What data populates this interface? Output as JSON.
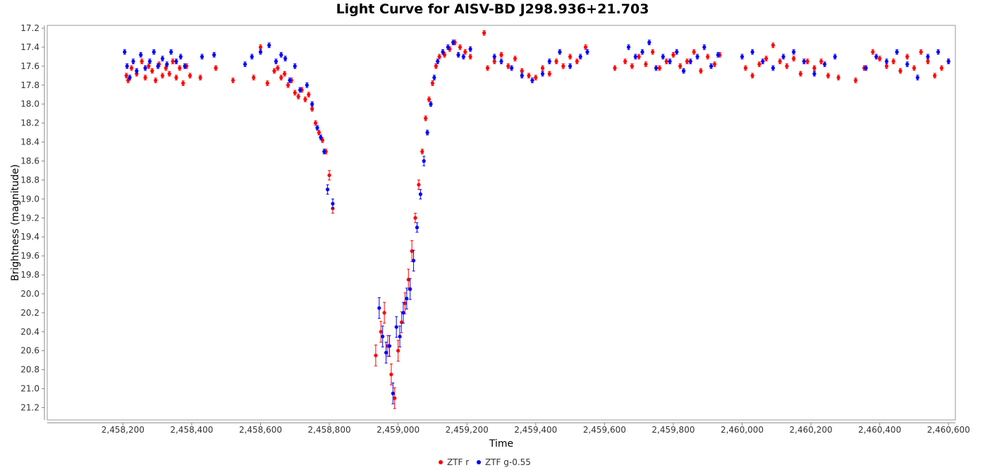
{
  "chart_data": {
    "type": "scatter",
    "title": "Light Curve for AISV-BD J298.936+21.703",
    "xlabel": "Time",
    "ylabel": "Brightness (magnitude)",
    "xlim": [
      2457980,
      2460620
    ],
    "ylim": [
      21.33,
      17.17
    ],
    "y_inverted": true,
    "grid": false,
    "legend_position": "bottom-center",
    "x_ticks": [
      2458200,
      2458400,
      2458600,
      2458800,
      2459000,
      2459200,
      2459400,
      2459600,
      2459800,
      2460000,
      2460200,
      2460400,
      2460600
    ],
    "x_tick_labels": [
      "2,458,200",
      "2,458,400",
      "2,458,600",
      "2,458,800",
      "2,459,000",
      "2,459,200",
      "2,459,400",
      "2,459,600",
      "2,459,800",
      "2,460,000",
      "2,460,200",
      "2,460,400",
      "2,460,600"
    ],
    "y_ticks": [
      17.2,
      17.4,
      17.6,
      17.8,
      18.0,
      18.2,
      18.4,
      18.6,
      18.8,
      19.0,
      19.2,
      19.4,
      19.6,
      19.8,
      20.0,
      20.2,
      20.4,
      20.6,
      20.8,
      21.0,
      21.2
    ],
    "y_tick_labels": [
      "17.2",
      "17.4",
      "17.6",
      "17.8",
      "18.0",
      "18.2",
      "18.4",
      "18.6",
      "18.8",
      "19.0",
      "19.2",
      "19.4",
      "19.6",
      "19.8",
      "20.0",
      "20.2",
      "20.4",
      "20.6",
      "20.8",
      "21.0",
      "21.2"
    ],
    "series": [
      {
        "name": "ZTF r",
        "color": "#ff0000",
        "x": [
          2458210,
          2458215,
          2458225,
          2458240,
          2458255,
          2458265,
          2458275,
          2458285,
          2458295,
          2458305,
          2458315,
          2458325,
          2458335,
          2458345,
          2458355,
          2458365,
          2458375,
          2458385,
          2458395,
          2458425,
          2458470,
          2458520,
          2458580,
          2458600,
          2458620,
          2458640,
          2458650,
          2458660,
          2458670,
          2458680,
          2458690,
          2458700,
          2458710,
          2458720,
          2458730,
          2458740,
          2458750,
          2458760,
          2458770,
          2458780,
          2458790,
          2458800,
          2458810,
          2458935,
          2458950,
          2458960,
          2458970,
          2458980,
          2458990,
          2459000,
          2459010,
          2459020,
          2459030,
          2459040,
          2459050,
          2459060,
          2459070,
          2459080,
          2459090,
          2459100,
          2459110,
          2459120,
          2459135,
          2459150,
          2459165,
          2459180,
          2459195,
          2459210,
          2459250,
          2459260,
          2459280,
          2459300,
          2459320,
          2459340,
          2459360,
          2459380,
          2459400,
          2459420,
          2459440,
          2459460,
          2459480,
          2459500,
          2459520,
          2459545,
          2459630,
          2459660,
          2459680,
          2459700,
          2459720,
          2459740,
          2459760,
          2459780,
          2459800,
          2459820,
          2459840,
          2459860,
          2459880,
          2459900,
          2459920,
          2459935,
          2460010,
          2460030,
          2460050,
          2460070,
          2460090,
          2460110,
          2460130,
          2460150,
          2460170,
          2460190,
          2460210,
          2460230,
          2460250,
          2460280,
          2460330,
          2460355,
          2460380,
          2460400,
          2460420,
          2460440,
          2460460,
          2460480,
          2460500,
          2460520,
          2460540,
          2460560,
          2460580,
          2460600
        ],
        "y": [
          17.7,
          17.75,
          17.62,
          17.68,
          17.55,
          17.72,
          17.6,
          17.65,
          17.75,
          17.58,
          17.7,
          17.62,
          17.68,
          17.55,
          17.72,
          17.62,
          17.78,
          17.6,
          17.7,
          17.72,
          17.62,
          17.75,
          17.72,
          17.4,
          17.78,
          17.65,
          17.62,
          17.72,
          17.68,
          17.8,
          17.75,
          17.88,
          17.92,
          17.85,
          17.95,
          17.9,
          18.05,
          18.2,
          18.3,
          18.38,
          18.5,
          18.75,
          19.1,
          20.65,
          20.4,
          20.2,
          20.55,
          20.85,
          21.1,
          20.6,
          20.3,
          20.1,
          19.85,
          19.55,
          19.2,
          18.85,
          18.5,
          18.15,
          17.95,
          17.78,
          17.6,
          17.5,
          17.48,
          17.42,
          17.35,
          17.4,
          17.45,
          17.5,
          17.25,
          17.62,
          17.55,
          17.48,
          17.6,
          17.52,
          17.65,
          17.7,
          17.72,
          17.62,
          17.68,
          17.55,
          17.6,
          17.5,
          17.55,
          17.4,
          17.62,
          17.55,
          17.6,
          17.5,
          17.58,
          17.45,
          17.62,
          17.55,
          17.48,
          17.6,
          17.55,
          17.45,
          17.65,
          17.5,
          17.58,
          17.48,
          17.62,
          17.7,
          17.58,
          17.52,
          17.38,
          17.55,
          17.6,
          17.52,
          17.68,
          17.55,
          17.62,
          17.55,
          17.7,
          17.72,
          17.75,
          17.62,
          17.45,
          17.52,
          17.6,
          17.55,
          17.65,
          17.5,
          17.62,
          17.45,
          17.55,
          17.7,
          17.62,
          17.55
        ]
      },
      {
        "name": "ZTF g-0.55",
        "color": "#0000ff",
        "x": [
          2458205,
          2458212,
          2458220,
          2458230,
          2458240,
          2458252,
          2458265,
          2458278,
          2458290,
          2458302,
          2458315,
          2458328,
          2458340,
          2458355,
          2458368,
          2458380,
          2458430,
          2458465,
          2458555,
          2458575,
          2458600,
          2458625,
          2458645,
          2458660,
          2458672,
          2458685,
          2458700,
          2458715,
          2458735,
          2458750,
          2458765,
          2458775,
          2458785,
          2458795,
          2458810,
          2458945,
          2458955,
          2458965,
          2458975,
          2458985,
          2458995,
          2459005,
          2459015,
          2459025,
          2459035,
          2459045,
          2459055,
          2459065,
          2459075,
          2459085,
          2459095,
          2459105,
          2459115,
          2459130,
          2459145,
          2459160,
          2459175,
          2459190,
          2459210,
          2459280,
          2459300,
          2459330,
          2459360,
          2459390,
          2459420,
          2459440,
          2459470,
          2459500,
          2459530,
          2459550,
          2459670,
          2459690,
          2459710,
          2459730,
          2459750,
          2459770,
          2459790,
          2459810,
          2459830,
          2459850,
          2459870,
          2459890,
          2459910,
          2459930,
          2460000,
          2460030,
          2460060,
          2460090,
          2460120,
          2460150,
          2460180,
          2460210,
          2460240,
          2460270,
          2460360,
          2460390,
          2460420,
          2460450,
          2460480,
          2460510,
          2460540,
          2460570,
          2460600
        ],
        "y": [
          17.45,
          17.6,
          17.72,
          17.55,
          17.65,
          17.48,
          17.62,
          17.55,
          17.45,
          17.6,
          17.52,
          17.58,
          17.45,
          17.55,
          17.5,
          17.6,
          17.5,
          17.48,
          17.58,
          17.5,
          17.45,
          17.38,
          17.55,
          17.48,
          17.52,
          17.75,
          17.6,
          17.85,
          17.8,
          18.0,
          18.25,
          18.35,
          18.5,
          18.9,
          19.05,
          20.15,
          20.45,
          20.62,
          20.55,
          21.05,
          20.35,
          20.45,
          20.2,
          20.05,
          19.95,
          19.65,
          19.3,
          18.95,
          18.6,
          18.3,
          18.0,
          17.72,
          17.55,
          17.45,
          17.4,
          17.35,
          17.48,
          17.5,
          17.42,
          17.5,
          17.55,
          17.62,
          17.7,
          17.75,
          17.68,
          17.55,
          17.45,
          17.6,
          17.5,
          17.45,
          17.4,
          17.5,
          17.45,
          17.35,
          17.62,
          17.5,
          17.55,
          17.45,
          17.65,
          17.55,
          17.5,
          17.4,
          17.6,
          17.48,
          17.5,
          17.45,
          17.55,
          17.62,
          17.5,
          17.45,
          17.55,
          17.68,
          17.58,
          17.5,
          17.62,
          17.5,
          17.55,
          17.45,
          17.58,
          17.72,
          17.5,
          17.45,
          17.55
        ]
      }
    ]
  }
}
